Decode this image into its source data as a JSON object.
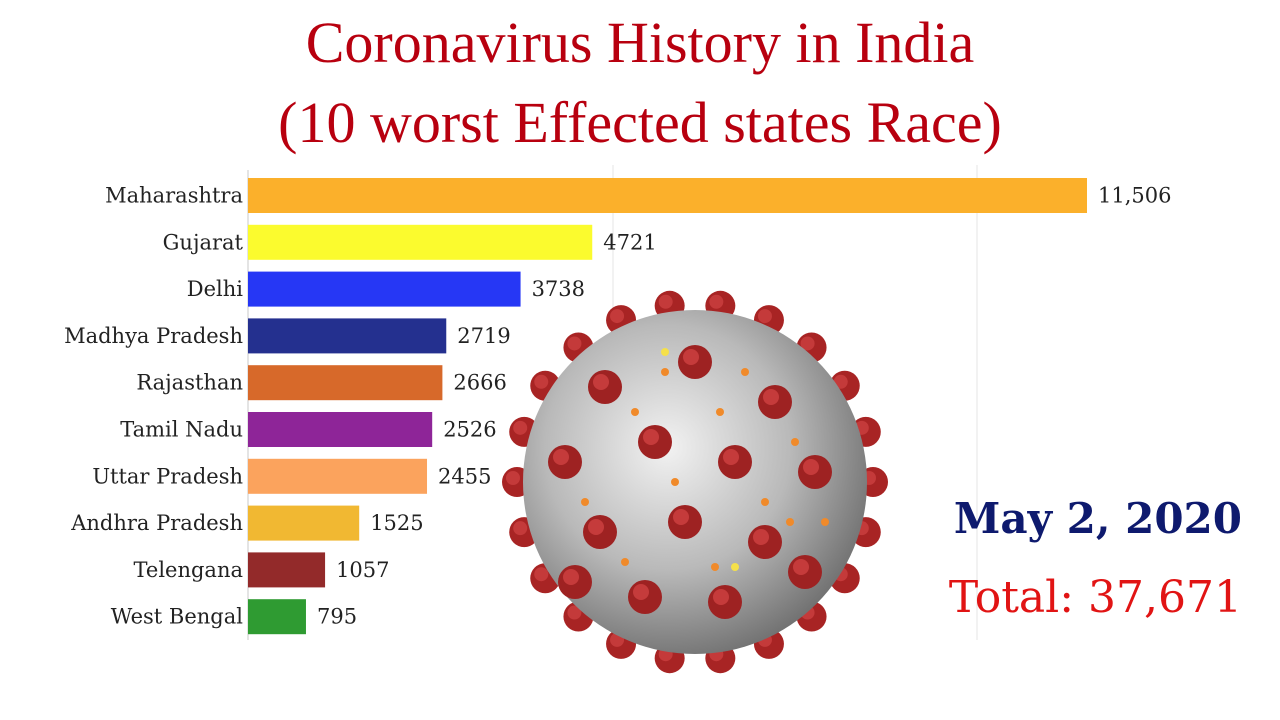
{
  "title": {
    "line1": "Coronavirus History in India",
    "line2": "(10 worst Effected states Race)"
  },
  "date": "May 2, 2020",
  "total": "Total: 37,671",
  "chart_data": {
    "type": "bar",
    "orientation": "horizontal",
    "title": "Coronavirus History in India (10 worst Effected states Race)",
    "categories": [
      "Maharashtra",
      "Gujarat",
      "Delhi",
      "Madhya Pradesh",
      "Rajasthan",
      "Tamil Nadu",
      "Uttar Pradesh",
      "Andhra Pradesh",
      "Telengana",
      "West Bengal"
    ],
    "values": [
      11506,
      4721,
      3738,
      2719,
      2666,
      2526,
      2455,
      1525,
      1057,
      795
    ],
    "value_labels": [
      "11,506",
      "4721",
      "3738",
      "2719",
      "2666",
      "2526",
      "2455",
      "1525",
      "1057",
      "795"
    ],
    "colors": [
      "#fbb02b",
      "#fbfb2e",
      "#2637f5",
      "#24308f",
      "#d7692a",
      "#8e2598",
      "#fba35d",
      "#f1b832",
      "#932a2a",
      "#2f9b32"
    ],
    "xlim": [
      0,
      11506
    ],
    "grid": true
  }
}
